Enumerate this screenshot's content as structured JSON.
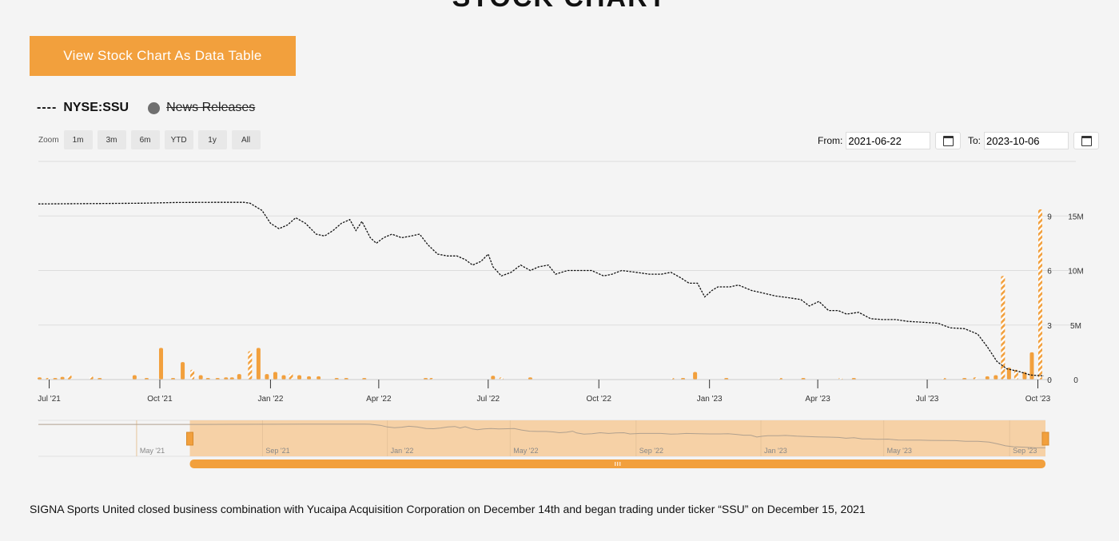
{
  "header": {
    "title": "STOCK CHART"
  },
  "table_button_label": "View Stock Chart As Data Table",
  "legend": {
    "dash": "----",
    "series_name": "NYSE:SSU",
    "news_label": "News Releases"
  },
  "zoom": {
    "label": "Zoom",
    "buttons": [
      "1m",
      "3m",
      "6m",
      "YTD",
      "1y",
      "All"
    ]
  },
  "range": {
    "from_label": "From:",
    "from_value": "2021-06-22",
    "to_label": "To:",
    "to_value": "2023-10-06"
  },
  "colors": {
    "accent": "#f2a03d",
    "line": "#111111",
    "grid": "#dddddd",
    "navigator_fill": "#f6cfa1"
  },
  "chart_data": {
    "type": "line",
    "x_range": [
      "2021-06-22",
      "2023-10-06"
    ],
    "x_ticks": [
      {
        "label": "Jul '21",
        "date": "2021-07-01"
      },
      {
        "label": "Oct '21",
        "date": "2021-10-01"
      },
      {
        "label": "Jan '22",
        "date": "2022-01-01"
      },
      {
        "label": "Apr '22",
        "date": "2022-04-01"
      },
      {
        "label": "Jul '22",
        "date": "2022-07-01"
      },
      {
        "label": "Oct '22",
        "date": "2022-10-01"
      },
      {
        "label": "Jan '23",
        "date": "2023-01-01"
      },
      {
        "label": "Apr '23",
        "date": "2023-04-01"
      },
      {
        "label": "Jul '23",
        "date": "2023-07-01"
      },
      {
        "label": "Oct '23",
        "date": "2023-10-01"
      }
    ],
    "price_axis": {
      "ticks": [
        0,
        3,
        6,
        9
      ],
      "ylim": [
        0,
        12
      ]
    },
    "volume_axis": {
      "ticks": [
        {
          "v": 0,
          "label": "0"
        },
        {
          "v": 5000000,
          "label": "5M"
        },
        {
          "v": 10000000,
          "label": "10M"
        },
        {
          "v": 15000000,
          "label": "15M"
        }
      ],
      "ylim": [
        0,
        20000000
      ]
    },
    "grid": true,
    "series": [
      {
        "name": "NYSE:SSU",
        "kind": "price",
        "points": [
          [
            "2021-06-22",
            9.66
          ],
          [
            "2021-08-01",
            9.68
          ],
          [
            "2021-09-15",
            9.7
          ],
          [
            "2021-10-15",
            9.74
          ],
          [
            "2021-11-15",
            9.75
          ],
          [
            "2021-12-10",
            9.75
          ],
          [
            "2021-12-15",
            9.7
          ],
          [
            "2021-12-25",
            9.3
          ],
          [
            "2022-01-01",
            8.6
          ],
          [
            "2022-01-08",
            8.3
          ],
          [
            "2022-01-15",
            8.5
          ],
          [
            "2022-01-22",
            8.9
          ],
          [
            "2022-01-30",
            8.6
          ],
          [
            "2022-02-08",
            8.0
          ],
          [
            "2022-02-15",
            7.9
          ],
          [
            "2022-02-22",
            8.2
          ],
          [
            "2022-03-01",
            8.6
          ],
          [
            "2022-03-08",
            8.8
          ],
          [
            "2022-03-13",
            8.2
          ],
          [
            "2022-03-18",
            8.7
          ],
          [
            "2022-03-25",
            7.8
          ],
          [
            "2022-03-30",
            7.5
          ],
          [
            "2022-04-05",
            7.8
          ],
          [
            "2022-04-12",
            8.0
          ],
          [
            "2022-04-20",
            7.8
          ],
          [
            "2022-04-28",
            7.9
          ],
          [
            "2022-05-05",
            8.0
          ],
          [
            "2022-05-12",
            7.4
          ],
          [
            "2022-05-20",
            6.9
          ],
          [
            "2022-05-28",
            6.8
          ],
          [
            "2022-06-05",
            6.8
          ],
          [
            "2022-06-12",
            6.6
          ],
          [
            "2022-06-18",
            6.3
          ],
          [
            "2022-06-25",
            6.5
          ],
          [
            "2022-07-01",
            6.9
          ],
          [
            "2022-07-05",
            6.2
          ],
          [
            "2022-07-12",
            5.7
          ],
          [
            "2022-07-20",
            5.9
          ],
          [
            "2022-07-28",
            6.3
          ],
          [
            "2022-08-05",
            6.0
          ],
          [
            "2022-08-12",
            6.2
          ],
          [
            "2022-08-20",
            6.3
          ],
          [
            "2022-08-26",
            5.8
          ],
          [
            "2022-09-05",
            6.0
          ],
          [
            "2022-09-15",
            6.0
          ],
          [
            "2022-09-25",
            6.0
          ],
          [
            "2022-10-05",
            5.7
          ],
          [
            "2022-10-12",
            5.8
          ],
          [
            "2022-10-20",
            6.0
          ],
          [
            "2022-11-01",
            5.9
          ],
          [
            "2022-11-12",
            5.8
          ],
          [
            "2022-11-22",
            5.8
          ],
          [
            "2022-11-30",
            5.9
          ],
          [
            "2022-12-08",
            5.6
          ],
          [
            "2022-12-15",
            5.3
          ],
          [
            "2022-12-22",
            5.3
          ],
          [
            "2022-12-28",
            4.55
          ],
          [
            "2023-01-03",
            4.9
          ],
          [
            "2023-01-08",
            5.1
          ],
          [
            "2023-01-18",
            5.1
          ],
          [
            "2023-01-25",
            5.2
          ],
          [
            "2023-02-05",
            4.9
          ],
          [
            "2023-02-15",
            4.75
          ],
          [
            "2023-02-25",
            4.6
          ],
          [
            "2023-03-08",
            4.5
          ],
          [
            "2023-03-18",
            4.4
          ],
          [
            "2023-03-25",
            4.05
          ],
          [
            "2023-04-02",
            4.3
          ],
          [
            "2023-04-10",
            3.8
          ],
          [
            "2023-04-18",
            3.8
          ],
          [
            "2023-04-25",
            3.6
          ],
          [
            "2023-05-05",
            3.7
          ],
          [
            "2023-05-15",
            3.35
          ],
          [
            "2023-05-25",
            3.3
          ],
          [
            "2023-06-05",
            3.3
          ],
          [
            "2023-06-15",
            3.2
          ],
          [
            "2023-06-28",
            3.15
          ],
          [
            "2023-07-10",
            3.1
          ],
          [
            "2023-07-20",
            2.85
          ],
          [
            "2023-08-01",
            2.8
          ],
          [
            "2023-08-12",
            2.5
          ],
          [
            "2023-08-20",
            1.8
          ],
          [
            "2023-08-28",
            1.0
          ],
          [
            "2023-09-05",
            0.6
          ],
          [
            "2023-09-15",
            0.45
          ],
          [
            "2023-09-25",
            0.25
          ],
          [
            "2023-10-06",
            0.2
          ]
        ]
      },
      {
        "name": "Volume",
        "kind": "volume",
        "points": [
          [
            "2021-06-23",
            200000,
            "solid"
          ],
          [
            "2021-06-30",
            100000,
            "hatched"
          ],
          [
            "2021-07-06",
            150000,
            "solid"
          ],
          [
            "2021-07-12",
            250000,
            "solid"
          ],
          [
            "2021-07-18",
            400000,
            "hatched"
          ],
          [
            "2021-08-05",
            300000,
            "hatched"
          ],
          [
            "2021-08-12",
            100000,
            "solid"
          ],
          [
            "2021-09-10",
            400000,
            "solid"
          ],
          [
            "2021-09-20",
            100000,
            "solid"
          ],
          [
            "2021-10-02",
            2900000,
            "solid"
          ],
          [
            "2021-10-12",
            150000,
            "solid"
          ],
          [
            "2021-10-20",
            1600000,
            "solid"
          ],
          [
            "2021-10-28",
            900000,
            "hatched"
          ],
          [
            "2021-11-04",
            400000,
            "solid"
          ],
          [
            "2021-11-10",
            150000,
            "solid"
          ],
          [
            "2021-11-18",
            150000,
            "solid"
          ],
          [
            "2021-11-25",
            200000,
            "solid"
          ],
          [
            "2021-11-30",
            200000,
            "solid"
          ],
          [
            "2021-12-06",
            500000,
            "solid"
          ],
          [
            "2021-12-15",
            2600000,
            "hatched"
          ],
          [
            "2021-12-22",
            2900000,
            "solid"
          ],
          [
            "2021-12-29",
            500000,
            "solid"
          ],
          [
            "2022-01-05",
            700000,
            "solid"
          ],
          [
            "2022-01-12",
            400000,
            "solid"
          ],
          [
            "2022-01-18",
            550000,
            "hatched"
          ],
          [
            "2022-01-25",
            400000,
            "solid"
          ],
          [
            "2022-02-02",
            300000,
            "solid"
          ],
          [
            "2022-02-10",
            300000,
            "solid"
          ],
          [
            "2022-02-25",
            150000,
            "solid"
          ],
          [
            "2022-03-05",
            150000,
            "solid"
          ],
          [
            "2022-03-20",
            100000,
            "solid"
          ],
          [
            "2022-05-10",
            100000,
            "solid"
          ],
          [
            "2022-05-15",
            100000,
            "hatched"
          ],
          [
            "2022-07-05",
            350000,
            "solid"
          ],
          [
            "2022-07-12",
            200000,
            "hatched"
          ],
          [
            "2022-08-05",
            200000,
            "solid"
          ],
          [
            "2022-12-01",
            100000,
            "hatched"
          ],
          [
            "2022-12-10",
            150000,
            "solid"
          ],
          [
            "2022-12-20",
            700000,
            "solid"
          ],
          [
            "2023-01-15",
            100000,
            "solid"
          ],
          [
            "2023-03-01",
            150000,
            "hatched"
          ],
          [
            "2023-03-20",
            100000,
            "solid"
          ],
          [
            "2023-04-20",
            100000,
            "hatched"
          ],
          [
            "2023-05-01",
            100000,
            "solid"
          ],
          [
            "2023-07-15",
            100000,
            "hatched"
          ],
          [
            "2023-08-01",
            150000,
            "solid"
          ],
          [
            "2023-08-10",
            200000,
            "hatched"
          ],
          [
            "2023-08-20",
            300000,
            "solid"
          ],
          [
            "2023-08-27",
            400000,
            "solid"
          ],
          [
            "2023-09-02",
            9500000,
            "hatched"
          ],
          [
            "2023-09-07",
            1100000,
            "solid"
          ],
          [
            "2023-09-13",
            900000,
            "hatched"
          ],
          [
            "2023-09-20",
            700000,
            "solid"
          ],
          [
            "2023-09-26",
            2500000,
            "solid"
          ],
          [
            "2023-10-03",
            15600000,
            "hatched"
          ]
        ]
      }
    ],
    "navigator": {
      "range": [
        "2021-01-25",
        "2023-10-06"
      ],
      "selection": [
        "2021-06-22",
        "2023-10-06"
      ],
      "ticks": [
        "May '21",
        "Sep '21",
        "Jan '22",
        "May '22",
        "Sep '22",
        "Jan '23",
        "May '23",
        "Sep '23"
      ]
    }
  },
  "footnote": "SIGNA Sports United closed business combination with Yucaipa Acquisition Corporation on December 14th and began trading under ticker “SSU” on December 15, 2021"
}
